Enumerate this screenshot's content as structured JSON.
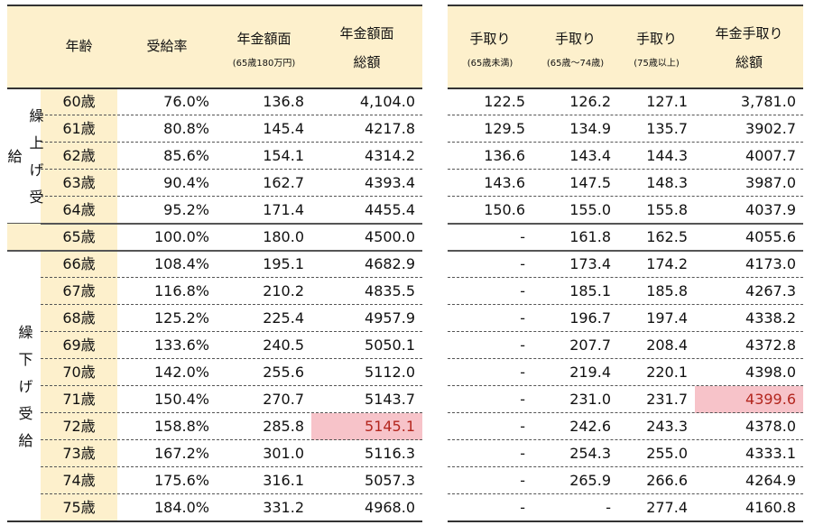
{
  "left": {
    "columns": [
      {
        "lines": [
          "年齢"
        ]
      },
      {
        "lines": [
          "受給率"
        ]
      },
      {
        "lines": [
          "年金額面"
        ],
        "note": "(65歳180万円)"
      },
      {
        "lines": [
          "年金額面",
          "総額"
        ]
      }
    ]
  },
  "right": {
    "columns": [
      {
        "lines": [
          "手取り"
        ],
        "note": "(65歳未満)"
      },
      {
        "lines": [
          "手取り"
        ],
        "note": "(65歳～74歳)"
      },
      {
        "lines": [
          "手取り"
        ],
        "note": "(75歳以上)"
      },
      {
        "lines": [
          "年金手取り",
          "総額"
        ]
      }
    ]
  },
  "groups": [
    {
      "label": "繰上げ受給",
      "rows": [
        [
          "60歳",
          "76.0%",
          "136.8",
          "4,104.0",
          "122.5",
          "126.2",
          "127.1",
          "3,781.0"
        ],
        [
          "61歳",
          "80.8%",
          "145.4",
          "4217.8",
          "129.5",
          "134.9",
          "135.7",
          "3902.7"
        ],
        [
          "62歳",
          "85.6%",
          "154.1",
          "4314.2",
          "136.6",
          "143.4",
          "144.3",
          "4007.7"
        ],
        [
          "63歳",
          "90.4%",
          "162.7",
          "4393.4",
          "143.6",
          "147.5",
          "148.3",
          "3987.0"
        ],
        [
          "64歳",
          "95.2%",
          "171.4",
          "4455.4",
          "150.6",
          "155.0",
          "155.8",
          "4037.9"
        ]
      ]
    },
    {
      "rows": [
        [
          "65歳",
          "100.0%",
          "180.0",
          "4500.0",
          "-",
          "161.8",
          "162.5",
          "4055.6"
        ]
      ]
    },
    {
      "label": "繰下げ受給",
      "rows": [
        [
          "66歳",
          "108.4%",
          "195.1",
          "4682.9",
          "-",
          "173.4",
          "174.2",
          "4173.0"
        ],
        [
          "67歳",
          "116.8%",
          "210.2",
          "4835.5",
          "-",
          "185.1",
          "185.8",
          "4267.3"
        ],
        [
          "68歳",
          "125.2%",
          "225.4",
          "4957.9",
          "-",
          "196.7",
          "197.4",
          "4338.2"
        ],
        [
          "69歳",
          "133.6%",
          "240.5",
          "5050.1",
          "-",
          "207.7",
          "208.4",
          "4372.8"
        ],
        [
          "70歳",
          "142.0%",
          "255.6",
          "5112.0",
          "-",
          "219.4",
          "220.1",
          "4398.0"
        ],
        [
          "71歳",
          "150.4%",
          "270.7",
          "5143.7",
          "-",
          "231.0",
          "231.7",
          "4399.6"
        ],
        [
          "72歳",
          "158.8%",
          "285.8",
          "5145.1",
          "-",
          "242.6",
          "243.3",
          "4378.0"
        ],
        [
          "73歳",
          "167.2%",
          "301.0",
          "5116.3",
          "-",
          "254.3",
          "255.0",
          "4333.1"
        ],
        [
          "74歳",
          "175.6%",
          "316.1",
          "5057.3",
          "-",
          "265.9",
          "266.6",
          "4264.9"
        ],
        [
          "75歳",
          "184.0%",
          "331.2",
          "4968.0",
          "-",
          "-",
          "277.4",
          "4160.8"
        ]
      ]
    }
  ]
}
